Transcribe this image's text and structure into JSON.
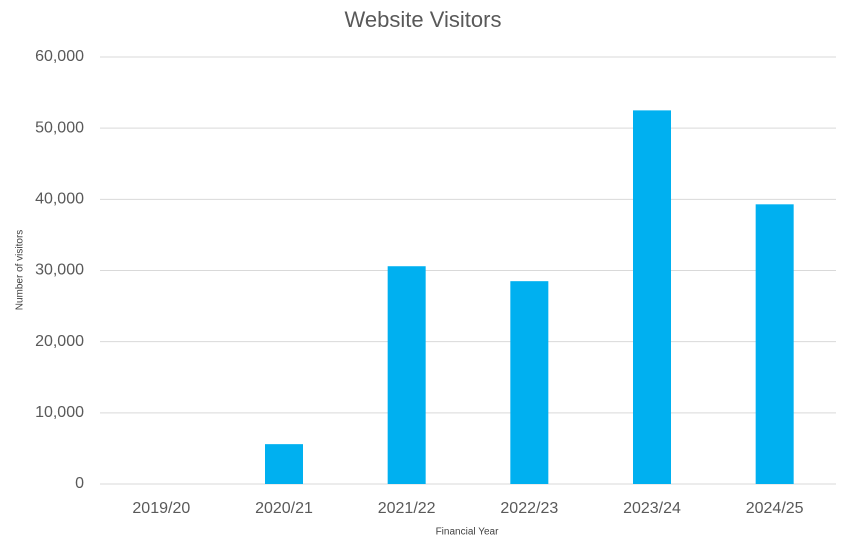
{
  "chart_data": {
    "type": "bar",
    "title": "Website Visitors",
    "x_label": "Financial Year",
    "y_label": "Number of visitors",
    "categories": [
      "2019/20",
      "2020/21",
      "2021/22",
      "2022/23",
      "2023/24",
      "2024/25"
    ],
    "values": [
      0,
      5600,
      30600,
      28500,
      52500,
      39300
    ],
    "color": "#00b0f0",
    "ylim": [
      0,
      60000
    ],
    "yticks": [
      0,
      {
        "value": 10000,
        "label": "10,000"
      },
      {
        "value": 20000,
        "label": "20,000"
      },
      {
        "value": 30000,
        "label": "30,000"
      },
      {
        "value": 40000,
        "label": "40,000"
      },
      {
        "value": 50000,
        "label": "50,000"
      },
      {
        "value": 60000,
        "label": "60,000"
      }
    ],
    "grid": true
  }
}
